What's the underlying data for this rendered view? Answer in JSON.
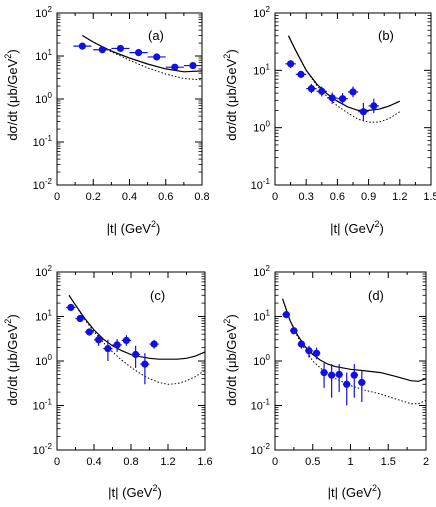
{
  "chart_data": [
    {
      "type": "scatter",
      "panel_label": "(a)",
      "xlabel": "|t|   (GeV",
      "xlabel_sup": "2",
      "xlabel_end": ")",
      "ylabel": "dσ/dt   (μb/GeV",
      "ylabel_sup": "2",
      "ylabel_end": ")",
      "xlim": [
        0,
        0.8
      ],
      "xticks": [
        0,
        0.2,
        0.4,
        0.6,
        0.8
      ],
      "xtick_labels": [
        "0",
        "0.2",
        "0.4",
        "0.6",
        "0.8"
      ],
      "ylog": true,
      "ylim": [
        0.01,
        100
      ],
      "ytick_base": "10",
      "ytick_exps": [
        "-2",
        "-1",
        "0",
        "1",
        "2"
      ],
      "points": [
        {
          "x": 0.14,
          "y": 17,
          "xerr": 0.05,
          "ylo": 15,
          "yhi": 19
        },
        {
          "x": 0.25,
          "y": 14,
          "xerr": 0.05,
          "ylo": 12.5,
          "yhi": 15.5
        },
        {
          "x": 0.35,
          "y": 15,
          "xerr": 0.05,
          "ylo": 13.5,
          "yhi": 16.5
        },
        {
          "x": 0.45,
          "y": 12,
          "xerr": 0.05,
          "ylo": 10.5,
          "yhi": 13.5
        },
        {
          "x": 0.55,
          "y": 9.5,
          "xerr": 0.05,
          "ylo": 8.5,
          "yhi": 10.5
        },
        {
          "x": 0.65,
          "y": 5.5,
          "xerr": 0.05,
          "ylo": 4.8,
          "yhi": 6.2
        },
        {
          "x": 0.75,
          "y": 6,
          "xerr": 0.05,
          "ylo": 5.2,
          "yhi": 6.8
        }
      ],
      "solid_curve": {
        "x": [
          0.14,
          0.2,
          0.3,
          0.4,
          0.5,
          0.6,
          0.7,
          0.8
        ],
        "y": [
          30,
          21,
          13,
          9,
          6.5,
          5,
          4.3,
          4.5
        ]
      },
      "dotted_curve": {
        "x": [
          0.14,
          0.2,
          0.3,
          0.4,
          0.5,
          0.6,
          0.7,
          0.8
        ],
        "y": [
          30,
          21,
          12.5,
          8,
          5.3,
          3.8,
          3.0,
          2.8
        ]
      }
    },
    {
      "type": "scatter",
      "panel_label": "(b)",
      "xlabel": "|t|   (GeV",
      "xlabel_sup": "2",
      "xlabel_end": ")",
      "ylabel": "dσ/dt   (μb/GeV",
      "ylabel_sup": "2",
      "ylabel_end": ")",
      "xlim": [
        0,
        1.5
      ],
      "xticks": [
        0,
        0.3,
        0.6,
        0.9,
        1.2,
        1.5
      ],
      "xtick_labels": [
        "0",
        "0.3",
        "0.6",
        "0.9",
        "1.2",
        "1.5"
      ],
      "ylog": true,
      "ylim": [
        0.1,
        100
      ],
      "ytick_base": "10",
      "ytick_exps": [
        "-1",
        "0",
        "1",
        "2"
      ],
      "points": [
        {
          "x": 0.15,
          "y": 13,
          "xerr": 0.05,
          "ylo": 11,
          "yhi": 15
        },
        {
          "x": 0.25,
          "y": 8.5,
          "xerr": 0.05,
          "ylo": 7.3,
          "yhi": 9.8
        },
        {
          "x": 0.35,
          "y": 4.8,
          "xerr": 0.05,
          "ylo": 4.0,
          "yhi": 5.8
        },
        {
          "x": 0.45,
          "y": 4.3,
          "xerr": 0.05,
          "ylo": 3.5,
          "yhi": 5.2
        },
        {
          "x": 0.55,
          "y": 3.3,
          "xerr": 0.05,
          "ylo": 2.6,
          "yhi": 4.1
        },
        {
          "x": 0.65,
          "y": 3.2,
          "xerr": 0.05,
          "ylo": 2.5,
          "yhi": 4.0
        },
        {
          "x": 0.75,
          "y": 4.2,
          "xerr": 0.05,
          "ylo": 3.4,
          "yhi": 5.2
        },
        {
          "x": 0.85,
          "y": 1.9,
          "xerr": 0.05,
          "ylo": 1.3,
          "yhi": 2.7
        },
        {
          "x": 0.95,
          "y": 2.4,
          "xerr": 0.05,
          "ylo": 1.8,
          "yhi": 3.2
        }
      ],
      "solid_curve": {
        "x": [
          0.13,
          0.2,
          0.3,
          0.4,
          0.5,
          0.6,
          0.7,
          0.8,
          0.9,
          1.0,
          1.1,
          1.2
        ],
        "y": [
          40,
          22,
          10,
          5.8,
          3.9,
          2.9,
          2.3,
          2.0,
          2.0,
          2.1,
          2.4,
          2.9
        ]
      },
      "dotted_curve": {
        "x": [
          0.13,
          0.2,
          0.3,
          0.4,
          0.5,
          0.6,
          0.7,
          0.8,
          0.9,
          1.0,
          1.1,
          1.2
        ],
        "y": [
          40,
          22,
          10,
          5.5,
          3.5,
          2.4,
          1.8,
          1.4,
          1.25,
          1.25,
          1.45,
          1.9
        ]
      }
    },
    {
      "type": "scatter",
      "panel_label": "(c)",
      "xlabel": "|t|   (GeV",
      "xlabel_sup": "2",
      "xlabel_end": ")",
      "ylabel": "dσ/dt   (μb/GeV",
      "ylabel_sup": "2",
      "ylabel_end": ")",
      "xlim": [
        0,
        1.6
      ],
      "xticks": [
        0,
        0.4,
        0.8,
        1.2,
        1.6
      ],
      "xtick_labels": [
        "0",
        "0.4",
        "0.8",
        "1.2",
        "1.6"
      ],
      "ylog": true,
      "ylim": [
        0.01,
        100
      ],
      "ytick_base": "10",
      "ytick_exps": [
        "-2",
        "-1",
        "0",
        "1",
        "2"
      ],
      "points": [
        {
          "x": 0.15,
          "y": 16,
          "xerr": 0.05,
          "ylo": 14,
          "yhi": 18
        },
        {
          "x": 0.25,
          "y": 9,
          "xerr": 0.05,
          "ylo": 7.8,
          "yhi": 10.3
        },
        {
          "x": 0.35,
          "y": 4.5,
          "xerr": 0.05,
          "ylo": 3.7,
          "yhi": 5.4
        },
        {
          "x": 0.45,
          "y": 3.0,
          "xerr": 0.05,
          "ylo": 2.2,
          "yhi": 3.9
        },
        {
          "x": 0.55,
          "y": 1.9,
          "xerr": 0.05,
          "ylo": 1.0,
          "yhi": 3.0
        },
        {
          "x": 0.65,
          "y": 2.3,
          "xerr": 0.05,
          "ylo": 1.6,
          "yhi": 3.1
        },
        {
          "x": 0.75,
          "y": 2.9,
          "xerr": 0.05,
          "ylo": 2.2,
          "yhi": 3.8
        },
        {
          "x": 0.85,
          "y": 1.4,
          "xerr": 0.05,
          "ylo": 0.7,
          "yhi": 2.2
        },
        {
          "x": 0.95,
          "y": 0.85,
          "xerr": 0.05,
          "ylo": 0.3,
          "yhi": 1.5
        },
        {
          "x": 1.05,
          "y": 2.4,
          "xerr": 0.05,
          "ylo": 1.9,
          "yhi": 3.0
        }
      ],
      "solid_curve": {
        "x": [
          0.13,
          0.2,
          0.3,
          0.4,
          0.5,
          0.6,
          0.7,
          0.8,
          0.9,
          1.0,
          1.1,
          1.2,
          1.3,
          1.4,
          1.5,
          1.6
        ],
        "y": [
          30,
          18,
          9,
          5,
          3.1,
          2.2,
          1.7,
          1.4,
          1.25,
          1.15,
          1.1,
          1.1,
          1.1,
          1.15,
          1.3,
          1.6
        ]
      },
      "dotted_curve": {
        "x": [
          0.13,
          0.2,
          0.3,
          0.4,
          0.5,
          0.6,
          0.7,
          0.8,
          0.9,
          1.0,
          1.1,
          1.2,
          1.3,
          1.4,
          1.5,
          1.6
        ],
        "y": [
          30,
          18,
          8.5,
          4.6,
          2.6,
          1.6,
          1.05,
          0.72,
          0.52,
          0.4,
          0.33,
          0.3,
          0.31,
          0.36,
          0.45,
          0.62
        ]
      }
    },
    {
      "type": "scatter",
      "panel_label": "(d)",
      "xlabel": "|t|   (GeV",
      "xlabel_sup": "2",
      "xlabel_end": ")",
      "ylabel": "dσ/dt   (μb/GeV",
      "ylabel_sup": "2",
      "ylabel_end": ")",
      "xlim": [
        0,
        2
      ],
      "xticks": [
        0,
        0.5,
        1,
        1.5,
        2
      ],
      "xtick_labels": [
        "0",
        "0.5",
        "1",
        "1.5",
        "2"
      ],
      "ylog": true,
      "ylim": [
        0.01,
        100
      ],
      "ytick_base": "10",
      "ytick_exps": [
        "-2",
        "-1",
        "0",
        "1",
        "2"
      ],
      "points": [
        {
          "x": 0.15,
          "y": 11,
          "xerr": 0.05,
          "ylo": 9.5,
          "yhi": 12.5
        },
        {
          "x": 0.25,
          "y": 4.8,
          "xerr": 0.05,
          "ylo": 4.0,
          "yhi": 5.7
        },
        {
          "x": 0.35,
          "y": 2.4,
          "xerr": 0.05,
          "ylo": 1.9,
          "yhi": 3.0
        },
        {
          "x": 0.45,
          "y": 1.7,
          "xerr": 0.05,
          "ylo": 1.2,
          "yhi": 2.2
        },
        {
          "x": 0.55,
          "y": 1.5,
          "xerr": 0.05,
          "ylo": 1.1,
          "yhi": 2.0
        },
        {
          "x": 0.65,
          "y": 0.55,
          "xerr": 0.05,
          "ylo": 0.25,
          "yhi": 0.9
        },
        {
          "x": 0.75,
          "y": 0.48,
          "xerr": 0.05,
          "ylo": 0.15,
          "yhi": 0.85
        },
        {
          "x": 0.85,
          "y": 0.5,
          "xerr": 0.05,
          "ylo": 0.2,
          "yhi": 0.85
        },
        {
          "x": 0.95,
          "y": 0.3,
          "xerr": 0.05,
          "ylo": 0.1,
          "yhi": 0.55
        },
        {
          "x": 1.05,
          "y": 0.48,
          "xerr": 0.05,
          "ylo": 0.15,
          "yhi": 0.85
        },
        {
          "x": 1.15,
          "y": 0.33,
          "xerr": 0.05,
          "ylo": 0.12,
          "yhi": 0.6
        }
      ],
      "solid_curve": {
        "x": [
          0.1,
          0.2,
          0.3,
          0.4,
          0.5,
          0.6,
          0.7,
          0.8,
          1.0,
          1.2,
          1.4,
          1.6,
          1.8,
          1.9,
          2.0
        ],
        "y": [
          25,
          8,
          3.8,
          2.1,
          1.4,
          1.05,
          0.85,
          0.75,
          0.65,
          0.6,
          0.55,
          0.45,
          0.36,
          0.35,
          0.4
        ]
      },
      "dotted_curve": {
        "x": [
          0.1,
          0.2,
          0.3,
          0.4,
          0.5,
          0.6,
          0.7,
          0.8,
          1.0,
          1.2,
          1.4,
          1.6,
          1.8,
          1.9,
          2.0
        ],
        "y": [
          25,
          8,
          3.5,
          1.8,
          1.0,
          0.7,
          0.5,
          0.4,
          0.28,
          0.22,
          0.18,
          0.14,
          0.11,
          0.11,
          0.13
        ]
      }
    }
  ],
  "colors": {
    "marker": "#1010e0",
    "errorbar": "#1010e0",
    "curve": "#000000",
    "axis": "#000000"
  }
}
